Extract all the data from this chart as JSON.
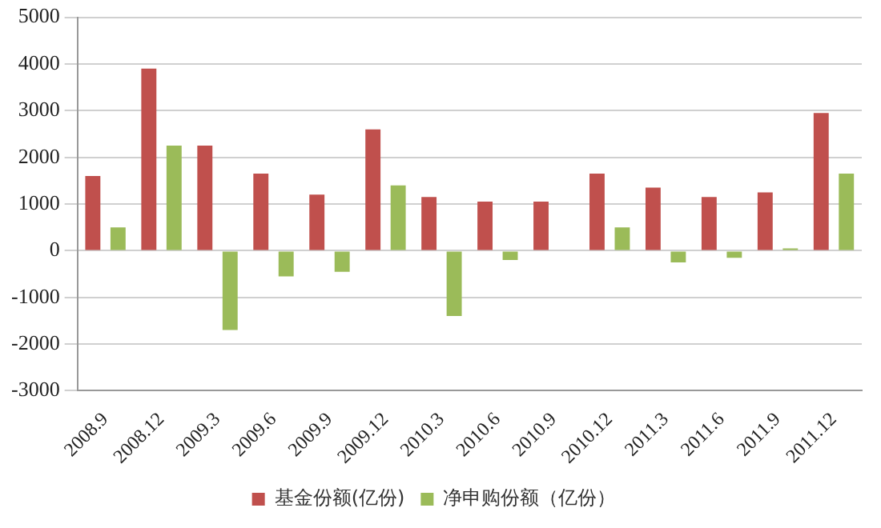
{
  "chart_data": {
    "type": "bar",
    "categories": [
      "2008.9",
      "2008.12",
      "2009.3",
      "2009.6",
      "2009.9",
      "2009.12",
      "2010.3",
      "2010.6",
      "2010.9",
      "2010.12",
      "2011.3",
      "2011.6",
      "2011.9",
      "2011.12"
    ],
    "series": [
      {
        "name": "基金份额(亿份)",
        "color": "#c0504d",
        "values": [
          1600,
          3900,
          2250,
          1650,
          1200,
          2600,
          1150,
          1050,
          1050,
          1650,
          1350,
          1150,
          1250,
          2950
        ]
      },
      {
        "name": "净申购份额（亿份）",
        "color": "#9bbb59",
        "values": [
          500,
          2250,
          -1700,
          -550,
          -450,
          1400,
          -1400,
          -200,
          null,
          500,
          -250,
          -150,
          50,
          1650
        ]
      }
    ],
    "ylim": [
      -3000,
      5000
    ],
    "yticks": [
      -3000,
      -2000,
      -1000,
      0,
      1000,
      2000,
      3000,
      4000,
      5000
    ],
    "grid": "y",
    "legend": "bottom"
  }
}
